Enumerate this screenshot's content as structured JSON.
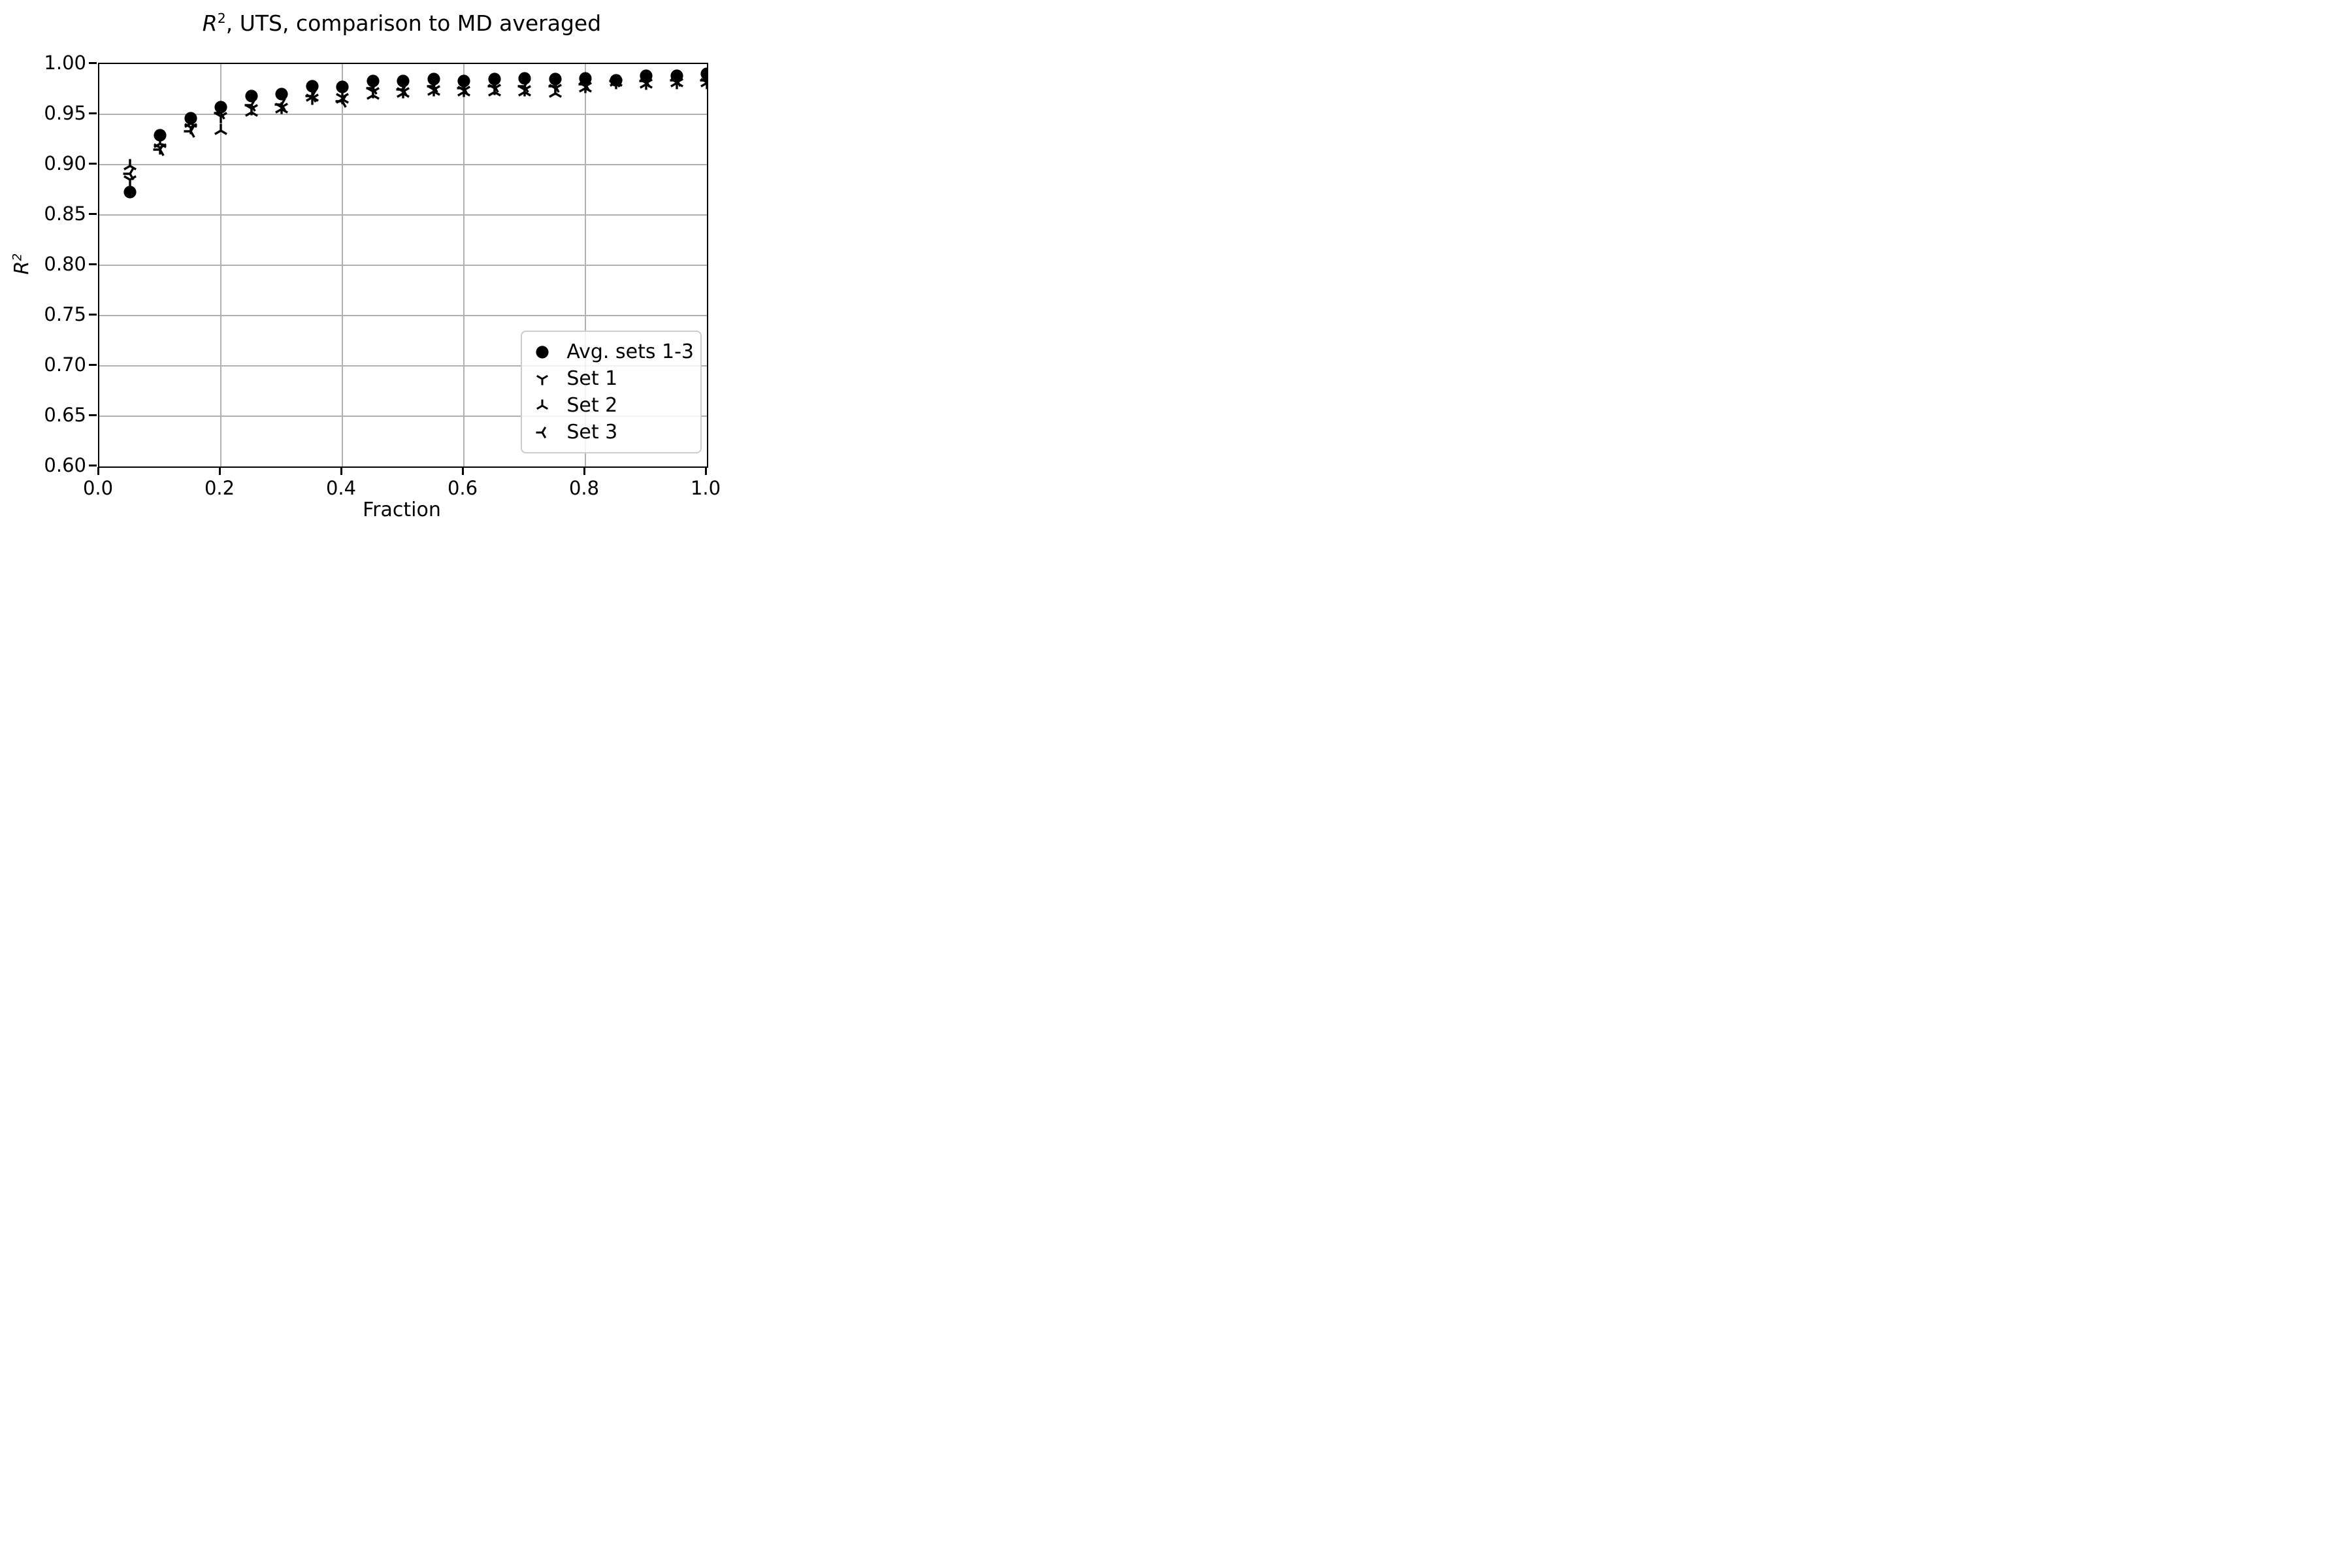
{
  "title": {
    "r": "R",
    "sup": "2",
    "rest": ", UTS, comparison to MD averaged"
  },
  "axes": {
    "xlabel": "Fraction",
    "ylabel_r": "R",
    "ylabel_sup": "2",
    "xtick_labels": [
      "0.0",
      "0.2",
      "0.4",
      "0.6",
      "0.8",
      "1.0"
    ],
    "ytick_labels": [
      "0.60",
      "0.65",
      "0.70",
      "0.75",
      "0.80",
      "0.85",
      "0.90",
      "0.95",
      "1.00"
    ]
  },
  "legend": {
    "items": [
      {
        "label": "Avg. sets 1-3",
        "marker": "circle-icon"
      },
      {
        "label": "Set 1",
        "marker": "tri-down-icon"
      },
      {
        "label": "Set 2",
        "marker": "tri-up-icon"
      },
      {
        "label": "Set 3",
        "marker": "tri-left-icon"
      }
    ]
  },
  "colors": {
    "marker": "#000000",
    "grid": "#b0b0b0",
    "legend_border": "#cccccc",
    "spine": "#000000"
  },
  "chart_data": {
    "type": "scatter",
    "title": "R^2, UTS, comparison to MD averaged",
    "xlabel": "Fraction",
    "ylabel": "R^2",
    "xlim": [
      0.0,
      1.0
    ],
    "ylim": [
      0.6,
      1.0
    ],
    "xticks": [
      0.0,
      0.2,
      0.4,
      0.6,
      0.8,
      1.0
    ],
    "yticks": [
      0.6,
      0.65,
      0.7,
      0.75,
      0.8,
      0.85,
      0.9,
      0.95,
      1.0
    ],
    "xgrid": [
      0.2,
      0.4,
      0.6,
      0.8
    ],
    "ygrid": [
      0.65,
      0.7,
      0.75,
      0.8,
      0.85,
      0.9,
      0.95
    ],
    "grid": true,
    "legend_position": "lower right",
    "x": [
      0.05,
      0.1,
      0.15,
      0.2,
      0.25,
      0.3,
      0.35,
      0.4,
      0.45,
      0.5,
      0.55,
      0.6,
      0.65,
      0.7,
      0.75,
      0.8,
      0.85,
      0.9,
      0.95,
      1.0
    ],
    "series": [
      {
        "name": "Avg. sets 1-3",
        "marker": "circle",
        "values": [
          0.873,
          0.929,
          0.946,
          0.957,
          0.968,
          0.97,
          0.978,
          0.977,
          0.983,
          0.983,
          0.985,
          0.983,
          0.985,
          0.986,
          0.985,
          0.986,
          0.984,
          0.988,
          0.988,
          0.99
        ]
      },
      {
        "name": "Set 1",
        "marker": "tri-down",
        "values": [
          0.885,
          0.917,
          0.937,
          0.948,
          0.956,
          0.957,
          0.966,
          0.967,
          0.973,
          0.973,
          0.975,
          0.974,
          0.976,
          0.975,
          0.976,
          0.978,
          0.982,
          0.981,
          0.982,
          0.982
        ]
      },
      {
        "name": "Set 2",
        "marker": "tri-up",
        "values": [
          0.899,
          0.921,
          0.941,
          0.934,
          0.952,
          0.955,
          0.967,
          0.965,
          0.969,
          0.971,
          0.973,
          0.972,
          0.972,
          0.972,
          0.971,
          0.976,
          0.982,
          0.98,
          0.981,
          0.981
        ]
      },
      {
        "name": "Set 3",
        "marker": "tri-left",
        "values": [
          0.891,
          0.915,
          0.933,
          0.951,
          0.959,
          0.96,
          0.968,
          0.963,
          0.976,
          0.975,
          0.978,
          0.976,
          0.978,
          0.978,
          0.978,
          0.98,
          0.983,
          0.983,
          0.984,
          0.984
        ]
      }
    ],
    "draw_order": [
      1,
      2,
      3,
      0
    ]
  }
}
